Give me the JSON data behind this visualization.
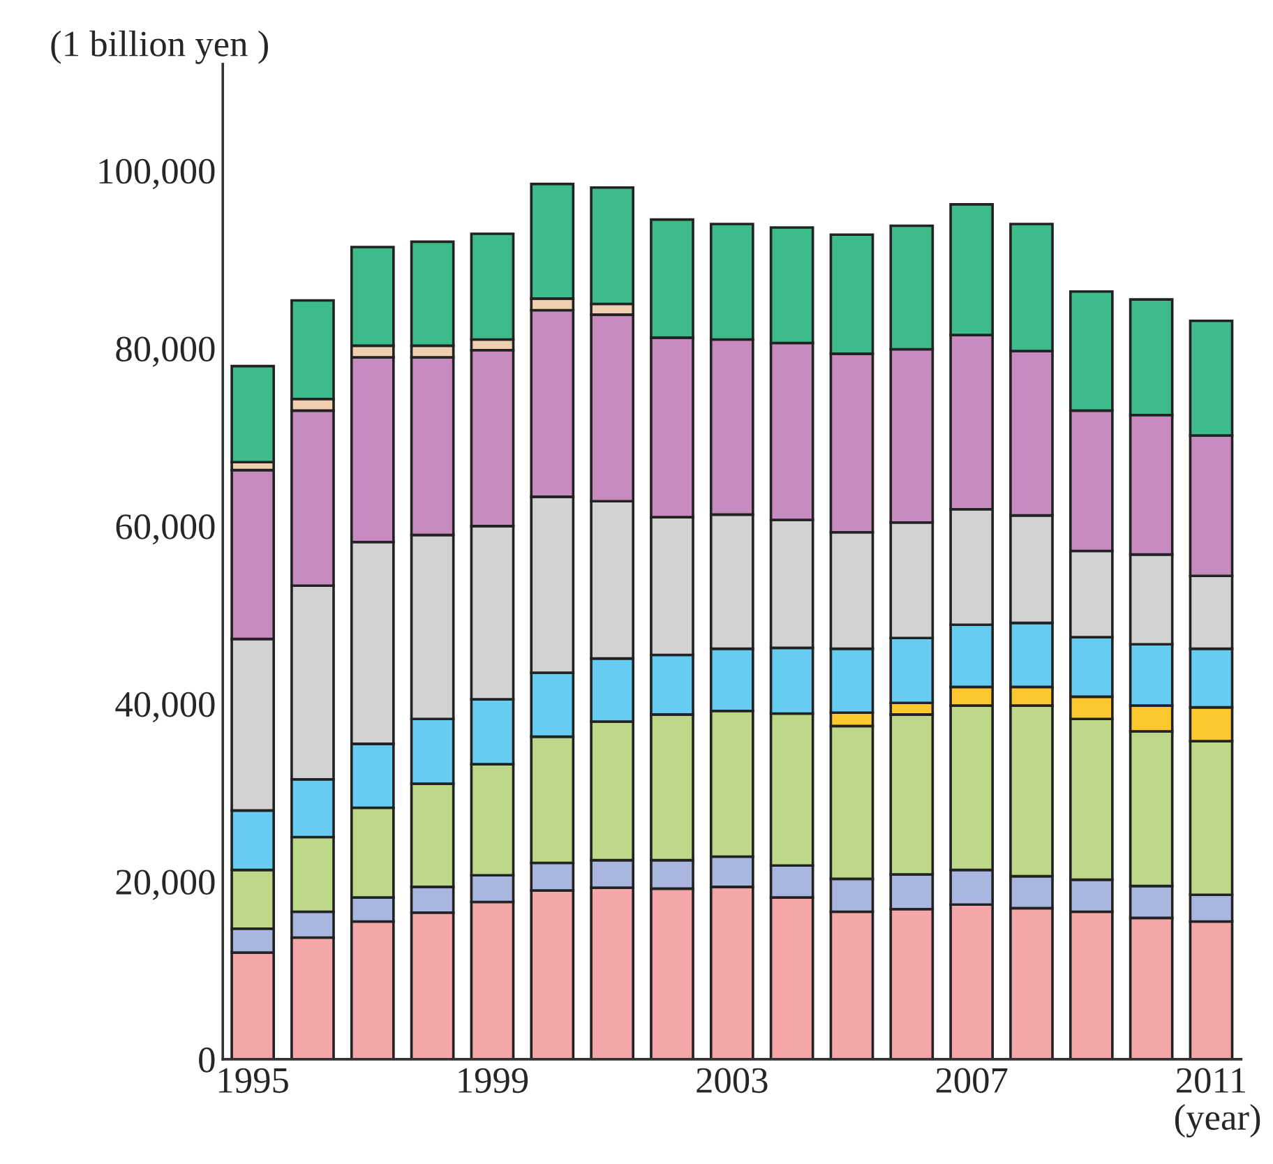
{
  "chart_data": {
    "type": "bar",
    "stacked": true,
    "xlabel": "(year)",
    "ylabel": "(1 billion yen )",
    "categories": [
      "1995",
      null,
      null,
      null,
      "1999",
      null,
      null,
      null,
      "2003",
      null,
      null,
      null,
      "2007",
      null,
      null,
      null,
      "2011"
    ],
    "series": [
      {
        "color": "#f4a6a8",
        "values": [
          12000,
          13700,
          15500,
          16500,
          17700,
          19000,
          19300,
          19200,
          19400,
          18200,
          16600,
          16900,
          17400,
          17000,
          16600,
          15900,
          15500
        ]
      },
      {
        "color": "#a9b7e0",
        "values": [
          2700,
          2900,
          2700,
          2900,
          3000,
          3100,
          3100,
          3200,
          3400,
          3600,
          3700,
          3900,
          3900,
          3600,
          3600,
          3600,
          3000
        ]
      },
      {
        "color": "#bcd888",
        "values": [
          6600,
          8400,
          10100,
          11600,
          12500,
          14200,
          15600,
          16400,
          16400,
          17100,
          17200,
          18000,
          18500,
          19200,
          18100,
          17400,
          17300
        ]
      },
      {
        "color": "#fdc82f",
        "values": [
          null,
          null,
          null,
          null,
          null,
          null,
          null,
          null,
          null,
          null,
          1500,
          1300,
          2100,
          2100,
          2500,
          2900,
          3800
        ]
      },
      {
        "color": "#66ccf2",
        "values": [
          6700,
          6500,
          7200,
          7300,
          7300,
          7200,
          7100,
          6700,
          7000,
          7400,
          7200,
          7300,
          7000,
          7200,
          6700,
          6900,
          6600
        ]
      },
      {
        "color": "#d1d2d4",
        "values": [
          19300,
          21800,
          22700,
          20700,
          19500,
          19800,
          17700,
          15500,
          15100,
          14400,
          13100,
          13000,
          13000,
          12100,
          9700,
          10100,
          8200
        ]
      },
      {
        "color": "#c88bbf",
        "values": [
          19000,
          19700,
          20800,
          20000,
          19800,
          21000,
          21000,
          20200,
          19700,
          19900,
          20100,
          19500,
          19600,
          18500,
          15800,
          15700,
          15800
        ]
      },
      {
        "color": "#f0cfb0",
        "values": [
          900,
          1300,
          1300,
          1300,
          1200,
          1300,
          1200,
          null,
          null,
          null,
          null,
          null,
          null,
          null,
          null,
          null,
          null
        ]
      },
      {
        "color": "#3dbb8a",
        "values": [
          10800,
          11100,
          11100,
          11700,
          11900,
          12900,
          13100,
          13300,
          13000,
          13000,
          13400,
          13900,
          14700,
          14300,
          13400,
          13000,
          12900
        ]
      }
    ],
    "ylim": [
      0,
      112000
    ],
    "yticks": [
      0,
      {
        "value": 20000,
        "label": "20,000"
      },
      {
        "value": 40000,
        "label": "40,000"
      },
      {
        "value": 60000,
        "label": "60,000"
      },
      {
        "value": 80000,
        "label": "80,000"
      },
      {
        "value": 100000,
        "label": "100,000"
      }
    ],
    "grid": false,
    "legend": false
  }
}
